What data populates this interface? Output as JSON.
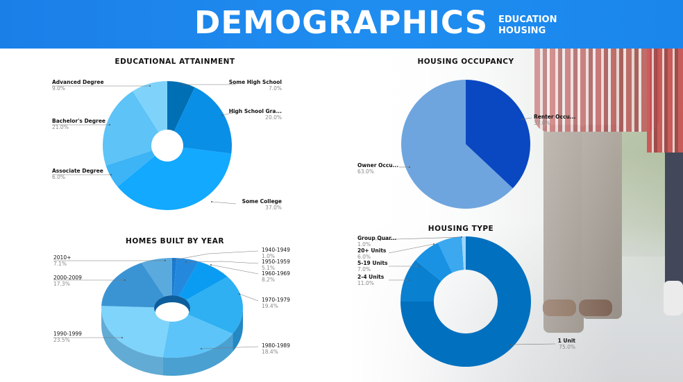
{
  "header": {
    "title": "DEMOGRAPHICS",
    "subtitle_line1": "EDUCATION",
    "subtitle_line2": "HOUSING"
  },
  "colors": {
    "header_bg": "#1b7fe8",
    "edu": [
      "#006fb3",
      "#0a8fe6",
      "#12a9ff",
      "#3cb4f5",
      "#5ec3f7",
      "#7fd3fb"
    ],
    "occ": [
      "#0a48c2",
      "#6fa5de"
    ],
    "homes": [
      "#1a7ad0",
      "#2489dc",
      "#0a9cf2",
      "#2eb0f2",
      "#5cc4f8",
      "#7fd4fb",
      "#3a94d4",
      "#5aaade"
    ],
    "homes_side": [
      "#0e5fa6",
      "#145e9c",
      "#0778c0",
      "#2388c4",
      "#4aa0d0",
      "#62abd4",
      "#2e7ab0",
      "#4a8ec0"
    ],
    "htype": [
      "#0070bf",
      "#0a80d0",
      "#1a92e4",
      "#3ba8f0",
      "#9fd6f8"
    ]
  },
  "chart_data": [
    {
      "type": "pie",
      "variant": "donut",
      "title": "EDUCATIONAL ATTAINMENT",
      "unit": "%",
      "slices": [
        {
          "label": "Some High School",
          "value": 7.0,
          "value_label": "7.0%"
        },
        {
          "label": "High School Gra...",
          "value": 20.0,
          "value_label": "20.0%"
        },
        {
          "label": "Some College",
          "value": 37.0,
          "value_label": "37.0%"
        },
        {
          "label": "Associate Degree",
          "value": 6.0,
          "value_label": "6.0%"
        },
        {
          "label": "Bachelor's Degree",
          "value": 21.0,
          "value_label": "21.0%"
        },
        {
          "label": "Advanced Degree",
          "value": 9.0,
          "value_label": "9.0%"
        }
      ]
    },
    {
      "type": "pie",
      "title": "HOUSING OCCUPANCY",
      "unit": "%",
      "slices": [
        {
          "label": "Renter Occu...",
          "value": 37.0,
          "value_label": "37.0%"
        },
        {
          "label": "Owner Occu...",
          "value": 63.0,
          "value_label": "63.0%"
        }
      ]
    },
    {
      "type": "pie",
      "variant": "3d-donut",
      "title": "HOMES BUILT BY YEAR",
      "unit": "%",
      "slices": [
        {
          "label": "1940-1949",
          "value": 1.0,
          "value_label": "1.0%"
        },
        {
          "label": "1950-1959",
          "value": 5.1,
          "value_label": "5.1%"
        },
        {
          "label": "1960-1969",
          "value": 8.2,
          "value_label": "8.2%"
        },
        {
          "label": "1970-1979",
          "value": 19.4,
          "value_label": "19.4%"
        },
        {
          "label": "1980-1989",
          "value": 18.4,
          "value_label": "18.4%"
        },
        {
          "label": "1990-1999",
          "value": 23.5,
          "value_label": "23.5%"
        },
        {
          "label": "2000-2009",
          "value": 17.3,
          "value_label": "17.3%"
        },
        {
          "label": "2010+",
          "value": 7.1,
          "value_label": "7.1%"
        }
      ]
    },
    {
      "type": "pie",
      "variant": "donut",
      "title": "HOUSING TYPE",
      "unit": "%",
      "slices": [
        {
          "label": "1 Unit",
          "value": 75.0,
          "value_label": "75.0%"
        },
        {
          "label": "2-4 Units",
          "value": 11.0,
          "value_label": "11.0%"
        },
        {
          "label": "5-19 Units",
          "value": 7.0,
          "value_label": "7.0%"
        },
        {
          "label": "20+ Units",
          "value": 6.0,
          "value_label": "6.0%"
        },
        {
          "label": "Group Quar...",
          "value": 1.0,
          "value_label": "1.0%"
        }
      ]
    }
  ]
}
